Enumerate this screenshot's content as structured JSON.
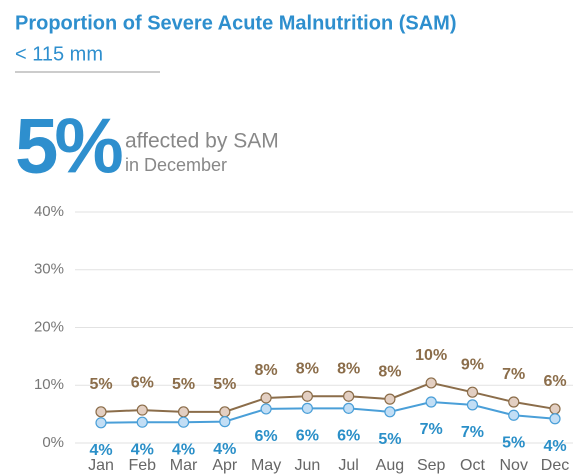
{
  "chart_data": {
    "type": "line",
    "title": "Proportion of Severe Acute Malnutrition (SAM)",
    "subtitle": "< 115 mm",
    "headline": "5%",
    "headline_text": "affected by SAM",
    "headline_subtext": "in December",
    "categories": [
      "Jan",
      "Feb",
      "Mar",
      "Apr",
      "May",
      "Jun",
      "Jul",
      "Aug",
      "Sep",
      "Oct",
      "Nov",
      "Dec"
    ],
    "series": [
      {
        "color": "#8b6d4a",
        "marker_color": "#e3cfc2",
        "values": [
          5.4,
          5.7,
          5.4,
          5.4,
          7.8,
          8.1,
          8.1,
          7.6,
          10.4,
          8.8,
          7.1,
          5.9
        ],
        "value_labels": [
          "5%",
          "6%",
          "5%",
          "5%",
          "8%",
          "8%",
          "8%",
          "8%",
          "10%",
          "9%",
          "7%",
          "6%"
        ]
      },
      {
        "color": "#4a9fd8",
        "marker_color": "#c2def5",
        "values": [
          3.5,
          3.6,
          3.6,
          3.7,
          5.9,
          6.0,
          6.0,
          5.4,
          7.1,
          6.6,
          4.8,
          4.2
        ],
        "value_labels": [
          "4%",
          "4%",
          "4%",
          "4%",
          "6%",
          "6%",
          "6%",
          "5%",
          "7%",
          "7%",
          "5%",
          "4%"
        ]
      }
    ],
    "ylim": [
      0,
      40
    ],
    "yticks": [
      {
        "value": 0,
        "label": "0%"
      },
      {
        "value": 10,
        "label": "10%"
      },
      {
        "value": 20,
        "label": "20%"
      },
      {
        "value": 30,
        "label": "30%"
      },
      {
        "value": 40,
        "label": "40%"
      }
    ],
    "grid": true
  }
}
